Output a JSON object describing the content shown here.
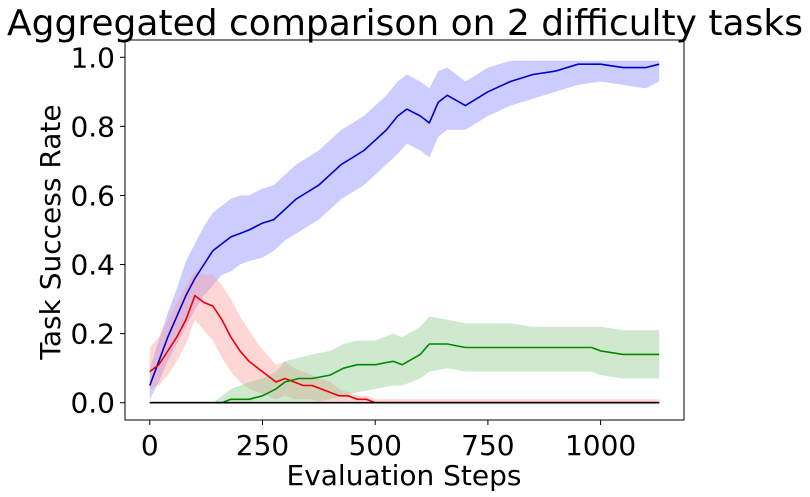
{
  "chart_data": {
    "type": "line",
    "title": "Aggregated comparison on 2 difficulty tasks",
    "xlabel": "Evaluation Steps",
    "ylabel": "Task Success Rate",
    "xlim": [
      -55,
      1185
    ],
    "ylim": [
      -0.05,
      1.05
    ],
    "xticks": [
      0,
      250,
      500,
      750,
      1000
    ],
    "yticks": [
      0.0,
      0.2,
      0.4,
      0.6,
      0.8,
      1.0
    ],
    "xtick_labels": [
      "0",
      "250",
      "500",
      "750",
      "1000"
    ],
    "ytick_labels": [
      "0.0",
      "0.2",
      "0.4",
      "0.6",
      "0.8",
      "1.0"
    ],
    "grid": false,
    "legend": "none",
    "series": [
      {
        "color": "#0000cc",
        "band_color": "#8080ff",
        "x": [
          0,
          20,
          40,
          60,
          80,
          100,
          120,
          140,
          160,
          180,
          200,
          220,
          250,
          275,
          300,
          325,
          350,
          375,
          400,
          425,
          450,
          475,
          500,
          525,
          550,
          570,
          600,
          620,
          640,
          660,
          700,
          750,
          800,
          850,
          900,
          950,
          1000,
          1050,
          1100,
          1130
        ],
        "y": [
          0.05,
          0.12,
          0.19,
          0.25,
          0.31,
          0.36,
          0.4,
          0.44,
          0.46,
          0.48,
          0.49,
          0.5,
          0.52,
          0.53,
          0.56,
          0.59,
          0.61,
          0.63,
          0.66,
          0.69,
          0.71,
          0.73,
          0.76,
          0.79,
          0.83,
          0.85,
          0.83,
          0.81,
          0.87,
          0.89,
          0.86,
          0.9,
          0.93,
          0.95,
          0.96,
          0.98,
          0.98,
          0.97,
          0.97,
          0.98
        ],
        "lower": [
          0.01,
          0.06,
          0.12,
          0.17,
          0.22,
          0.27,
          0.31,
          0.34,
          0.37,
          0.38,
          0.4,
          0.41,
          0.42,
          0.44,
          0.47,
          0.49,
          0.51,
          0.53,
          0.56,
          0.59,
          0.61,
          0.63,
          0.66,
          0.69,
          0.72,
          0.75,
          0.73,
          0.71,
          0.77,
          0.79,
          0.79,
          0.83,
          0.86,
          0.88,
          0.9,
          0.92,
          0.93,
          0.92,
          0.91,
          0.93
        ],
        "upper": [
          0.1,
          0.18,
          0.26,
          0.33,
          0.41,
          0.46,
          0.51,
          0.55,
          0.57,
          0.59,
          0.6,
          0.6,
          0.62,
          0.63,
          0.66,
          0.69,
          0.71,
          0.73,
          0.76,
          0.79,
          0.81,
          0.83,
          0.86,
          0.89,
          0.93,
          0.95,
          0.93,
          0.91,
          0.96,
          0.97,
          0.93,
          0.97,
          0.99,
          0.99,
          0.99,
          0.99,
          0.99,
          0.99,
          0.99,
          0.99
        ]
      },
      {
        "color": "#ee0000",
        "band_color": "#ff9999",
        "x": [
          0,
          20,
          40,
          60,
          80,
          100,
          120,
          140,
          160,
          180,
          200,
          220,
          240,
          260,
          280,
          300,
          320,
          340,
          360,
          380,
          400,
          420,
          440,
          460,
          480,
          500,
          550,
          600,
          650,
          700,
          750,
          800,
          850,
          900,
          950,
          1000,
          1050,
          1100,
          1130
        ],
        "y": [
          0.09,
          0.11,
          0.15,
          0.19,
          0.24,
          0.31,
          0.29,
          0.28,
          0.24,
          0.19,
          0.15,
          0.12,
          0.1,
          0.08,
          0.06,
          0.07,
          0.06,
          0.05,
          0.05,
          0.04,
          0.03,
          0.02,
          0.02,
          0.01,
          0.01,
          0.0,
          0.0,
          0.0,
          0.0,
          0.0,
          0.0,
          0.0,
          0.0,
          0.0,
          0.0,
          0.0,
          0.0,
          0.0,
          0.0
        ],
        "lower": [
          0.04,
          0.05,
          0.08,
          0.12,
          0.17,
          0.24,
          0.21,
          0.18,
          0.13,
          0.09,
          0.06,
          0.04,
          0.03,
          0.02,
          0.01,
          0.02,
          0.01,
          0.01,
          0.01,
          0.0,
          0.0,
          0.0,
          0.0,
          0.0,
          0.0,
          0.0,
          0.0,
          0.0,
          0.0,
          0.0,
          0.0,
          0.0,
          0.0,
          0.0,
          0.0,
          0.0,
          0.0,
          0.0,
          0.0
        ],
        "upper": [
          0.16,
          0.19,
          0.24,
          0.29,
          0.34,
          0.38,
          0.37,
          0.37,
          0.34,
          0.3,
          0.25,
          0.21,
          0.17,
          0.14,
          0.11,
          0.12,
          0.1,
          0.09,
          0.08,
          0.07,
          0.06,
          0.04,
          0.03,
          0.02,
          0.02,
          0.01,
          0.01,
          0.01,
          0.01,
          0.01,
          0.01,
          0.01,
          0.01,
          0.01,
          0.01,
          0.01,
          0.01,
          0.01,
          0.01
        ]
      },
      {
        "color": "#008800",
        "band_color": "#88c888",
        "x": [
          0,
          20,
          60,
          100,
          140,
          160,
          180,
          200,
          220,
          250,
          280,
          300,
          330,
          360,
          400,
          430,
          460,
          500,
          540,
          560,
          600,
          620,
          660,
          700,
          750,
          800,
          850,
          900,
          950,
          980,
          1000,
          1050,
          1100,
          1130
        ],
        "y": [
          0.0,
          0.0,
          0.0,
          0.0,
          0.0,
          0.0,
          0.01,
          0.01,
          0.01,
          0.02,
          0.04,
          0.06,
          0.07,
          0.07,
          0.08,
          0.1,
          0.11,
          0.11,
          0.12,
          0.11,
          0.14,
          0.17,
          0.17,
          0.16,
          0.16,
          0.16,
          0.16,
          0.16,
          0.16,
          0.16,
          0.15,
          0.14,
          0.14,
          0.14
        ],
        "lower": [
          0.0,
          0.0,
          0.0,
          0.0,
          0.0,
          0.0,
          0.0,
          0.0,
          0.0,
          0.0,
          0.0,
          0.0,
          0.0,
          0.0,
          0.01,
          0.02,
          0.03,
          0.04,
          0.05,
          0.05,
          0.07,
          0.09,
          0.1,
          0.09,
          0.09,
          0.09,
          0.09,
          0.09,
          0.09,
          0.09,
          0.08,
          0.07,
          0.07,
          0.07
        ],
        "upper": [
          0.0,
          0.0,
          0.0,
          0.0,
          0.0,
          0.02,
          0.04,
          0.05,
          0.06,
          0.07,
          0.09,
          0.12,
          0.13,
          0.14,
          0.15,
          0.17,
          0.18,
          0.18,
          0.2,
          0.19,
          0.22,
          0.25,
          0.24,
          0.23,
          0.23,
          0.23,
          0.22,
          0.22,
          0.22,
          0.22,
          0.22,
          0.21,
          0.21,
          0.21
        ]
      },
      {
        "color": "#000000",
        "band_color": "#000000",
        "x": [
          0,
          1130
        ],
        "y": [
          0.0,
          0.0
        ],
        "lower": [
          0.0,
          0.0
        ],
        "upper": [
          0.0,
          0.0
        ]
      }
    ]
  }
}
